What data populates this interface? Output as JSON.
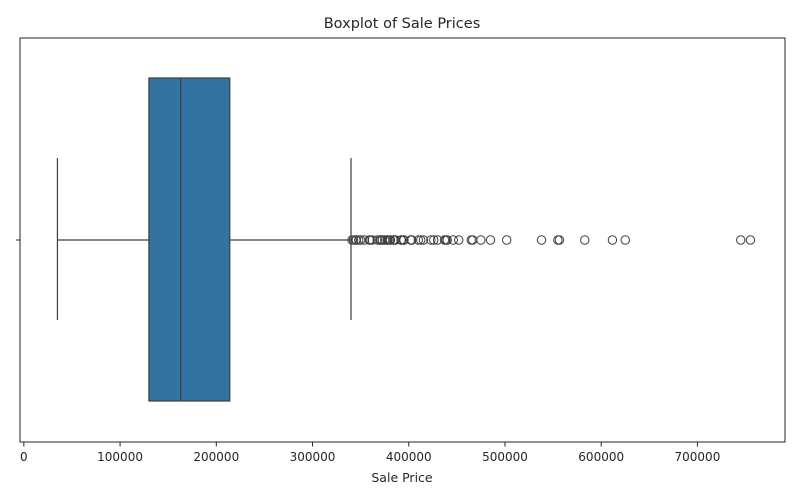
{
  "chart_data": {
    "type": "boxplot",
    "title": "Boxplot of Sale Prices",
    "xlabel": "Sale Price",
    "ylabel": "",
    "xlim": [
      -4000,
      791000
    ],
    "xticks": [
      0,
      100000,
      200000,
      300000,
      400000,
      500000,
      600000,
      700000
    ],
    "xtick_labels": [
      "0",
      "100000",
      "200000",
      "300000",
      "400000",
      "500000",
      "600000",
      "700000"
    ],
    "grid": false,
    "box_color": "#3274a1",
    "line_color": "#3f3f3f",
    "box": {
      "whisker_low": 34900,
      "q1": 129975,
      "median": 163000,
      "q3": 214000,
      "whisker_high": 340000
    },
    "outliers": [
      341000,
      342643,
      345000,
      345474,
      348000,
      350000,
      354000,
      359100,
      360000,
      361919,
      367294,
      369900,
      370878,
      372402,
      372500,
      375000,
      377426,
      378500,
      380000,
      381000,
      383970,
      385000,
      386250,
      392000,
      392500,
      394432,
      394617,
      395000,
      402000,
      402861,
      403000,
      410000,
      412500,
      415298,
      423000,
      426000,
      430000,
      437154,
      438780,
      440000,
      446261,
      451950,
      465000,
      466500,
      475000,
      485000,
      501837,
      538000,
      555000,
      556581,
      582933,
      611657,
      625000,
      745000,
      755000
    ]
  }
}
